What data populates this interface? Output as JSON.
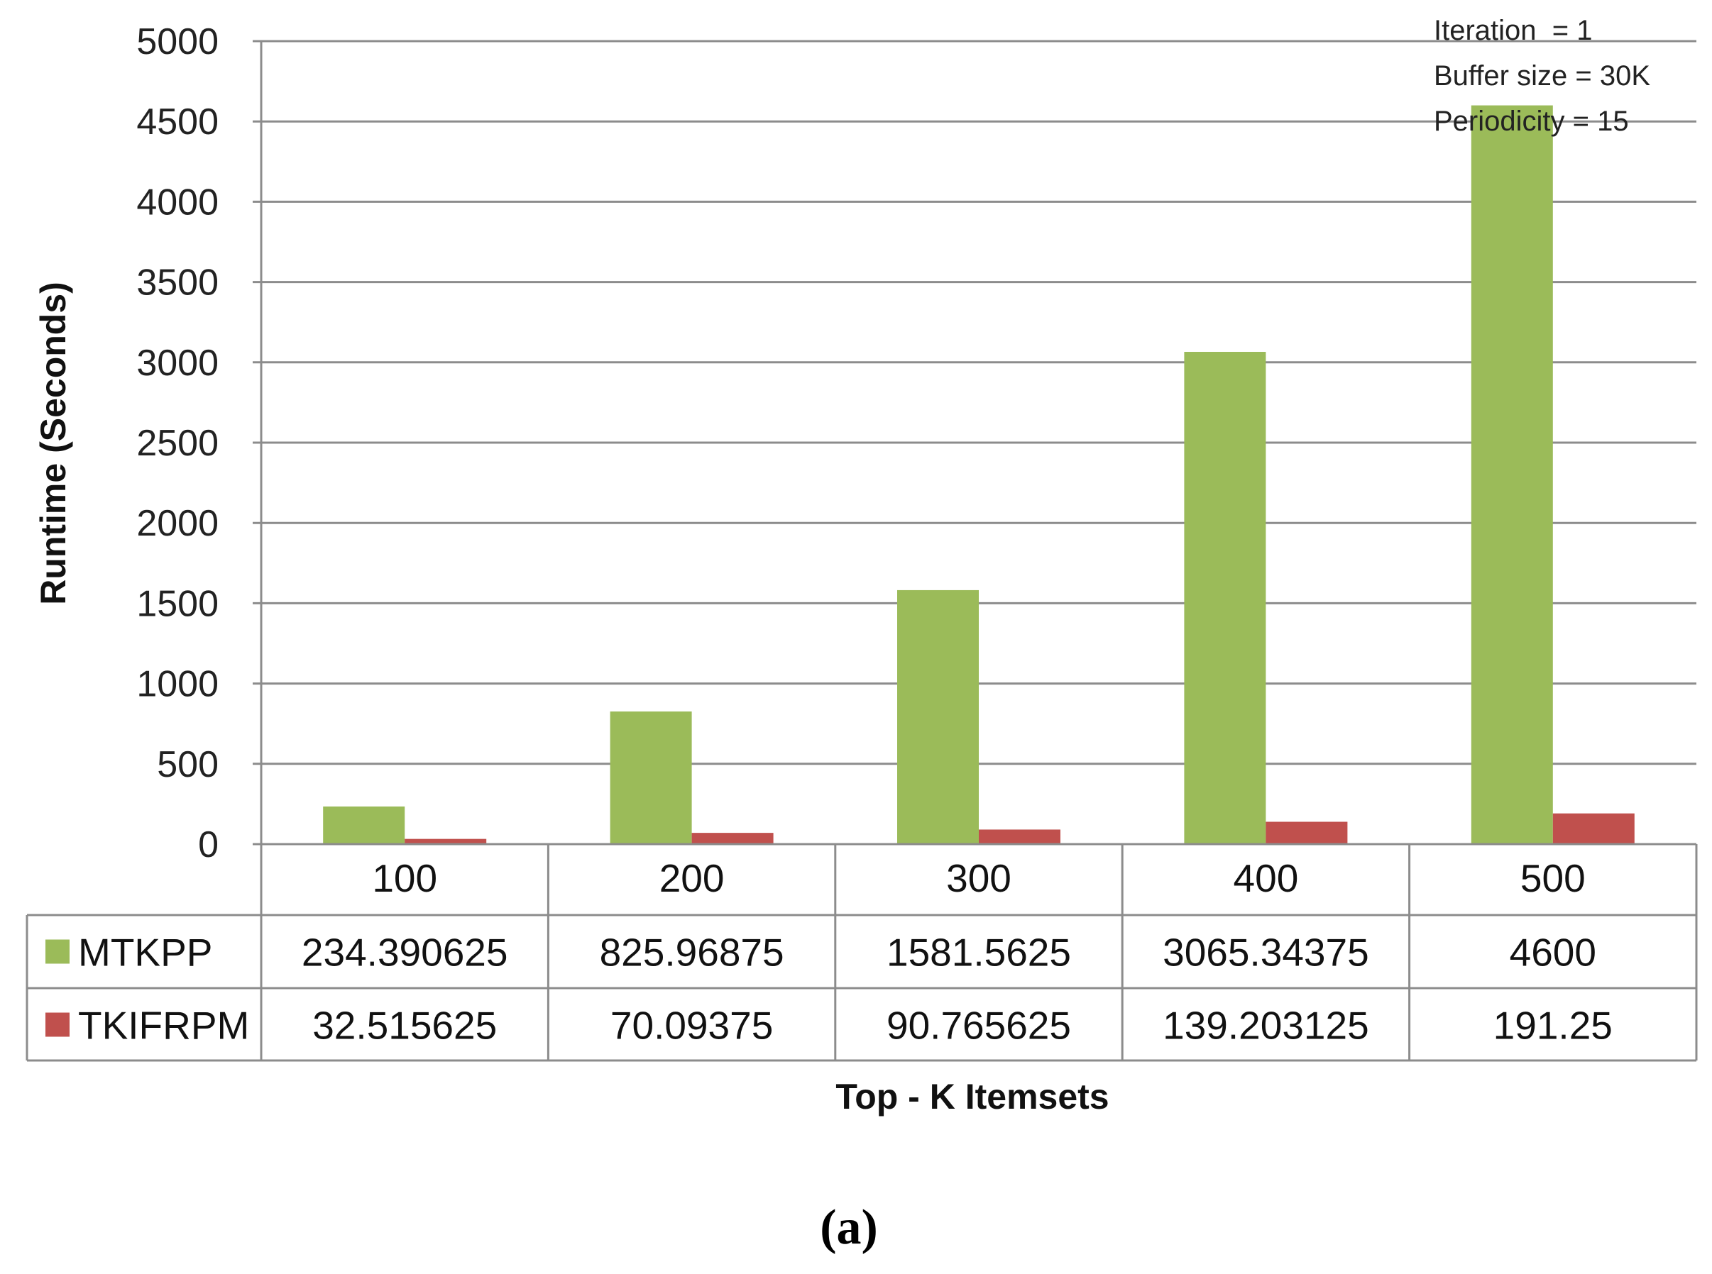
{
  "chart_data": {
    "type": "bar",
    "categories": [
      "100",
      "200",
      "300",
      "400",
      "500"
    ],
    "series": [
      {
        "name": "MTKPP",
        "values": [
          234.390625,
          825.96875,
          1581.5625,
          3065.34375,
          4600
        ],
        "color": "#9bbb59",
        "labels": [
          "234.390625",
          "825.96875",
          "1581.5625",
          "3065.34375",
          "4600"
        ]
      },
      {
        "name": "TKIFRPM",
        "values": [
          32.515625,
          70.09375,
          90.765625,
          139.203125,
          191.25
        ],
        "color": "#c0504d",
        "labels": [
          "32.515625",
          "70.09375",
          "90.765625",
          "139.203125",
          "191.25"
        ]
      }
    ],
    "ylim": [
      0,
      5000
    ],
    "yticks": [
      0,
      500,
      1000,
      1500,
      2000,
      2500,
      3000,
      3500,
      4000,
      4500,
      5000
    ],
    "ylabel": "Runtime (Seconds)",
    "xlabel": "Top - K Itemsets",
    "grid": true,
    "legend": "data-table",
    "annotations": [
      "Iteration  = 1",
      "Buffer size = 30K",
      "Periodicity = 15"
    ],
    "caption": "(a)"
  }
}
